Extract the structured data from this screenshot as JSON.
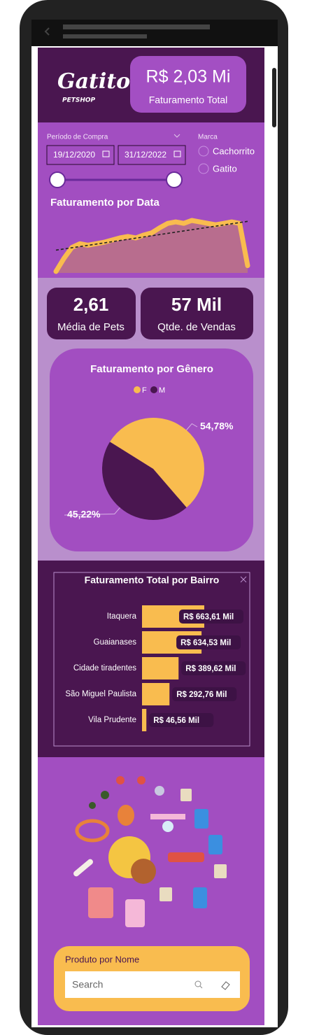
{
  "logo": {
    "title": "Gatito",
    "subtitle": "PETSHOP"
  },
  "kpis": [
    {
      "value": "R$ 2,03 Mi",
      "label": "Faturamento Total"
    },
    {
      "value": "2,61",
      "label": "Média de Pets"
    },
    {
      "value": "57 Mil",
      "label": "Qtde. de Vendas"
    }
  ],
  "filters": {
    "period_label": "Período de Compra",
    "start": "19/12/2020",
    "end": "31/12/2022",
    "brand_label": "Marca",
    "brands": [
      "Cachorrito",
      "Gatito"
    ]
  },
  "chart_data": [
    {
      "type": "area",
      "title": "Faturamento por Data",
      "values": [
        2,
        20,
        35,
        40,
        38,
        40,
        42,
        45,
        48,
        50,
        48,
        52,
        55,
        62,
        68,
        70,
        68,
        72,
        70,
        68,
        66,
        68,
        70,
        68,
        10
      ],
      "color": "#f9bc4f",
      "fill": "#b86d8e",
      "trend": true
    },
    {
      "type": "pie",
      "title": "Faturamento por Gênero",
      "categories": [
        "F",
        "M"
      ],
      "values": [
        54.78,
        45.22
      ],
      "value_labels": [
        "54,78%",
        "45,22%"
      ],
      "colors": [
        "#f9bc4f",
        "#4a1650"
      ]
    },
    {
      "type": "bar",
      "title": "Faturamento Total por Bairro",
      "categories": [
        "Itaquera",
        "Guaianases",
        "Cidade tiradentes",
        "São Miguel Paulista",
        "Vila Prudente"
      ],
      "values": [
        663610,
        634530,
        389620,
        292760,
        46560
      ],
      "value_labels": [
        "R$ 663,61 Mil",
        "R$ 634,53 Mil",
        "R$ 389,62 Mil",
        "R$ 292,76 Mil",
        "R$ 46,56 Mil"
      ],
      "color": "#f9bc4f"
    }
  ],
  "search": {
    "title": "Produto por Nome",
    "placeholder": "Search"
  }
}
